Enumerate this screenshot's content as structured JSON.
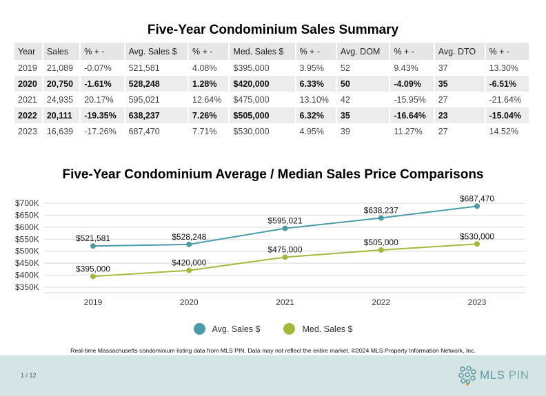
{
  "table": {
    "title": "Five-Year Condominium Sales Summary",
    "headers": [
      "Year",
      "Sales",
      "% + -",
      "Avg. Sales $",
      "% + -",
      "Med. Sales $",
      "% + -",
      "Avg. DOM",
      "% + -",
      "Avg. DTO",
      "% + -"
    ],
    "rows": [
      [
        "2019",
        "21,089",
        "-0.07%",
        "521,581",
        "4.08%",
        "$395,000",
        "3.95%",
        "52",
        "9.43%",
        "37",
        "13.30%"
      ],
      [
        "2020",
        "20,750",
        "-1.61%",
        "528,248",
        "1.28%",
        "$420,000",
        "6.33%",
        "50",
        "-4.09%",
        "35",
        "-6.51%"
      ],
      [
        "2021",
        "24,935",
        "20.17%",
        "595,021",
        "12.64%",
        "$475,000",
        "13.10%",
        "42",
        "-15.95%",
        "27",
        "-21.64%"
      ],
      [
        "2022",
        "20,111",
        "-19.35%",
        "638,237",
        "7.26%",
        "$505,000",
        "6.32%",
        "35",
        "-16.64%",
        "23",
        "-15.04%"
      ],
      [
        "2023",
        "16,639",
        "-17.26%",
        "687,470",
        "7.71%",
        "$530,000",
        "4.95%",
        "39",
        "11.27%",
        "27",
        "14.52%"
      ]
    ]
  },
  "chart_data": {
    "type": "line",
    "title": "Five-Year Condominium Average / Median Sales Price Comparisons",
    "x": [
      "2019",
      "2020",
      "2021",
      "2022",
      "2023"
    ],
    "ylim": [
      350000,
      700000
    ],
    "yticks": [
      {
        "value": 700000,
        "label": "$700K"
      },
      {
        "value": 650000,
        "label": "$650K"
      },
      {
        "value": 600000,
        "label": "$600K"
      },
      {
        "value": 550000,
        "label": "$550K"
      },
      {
        "value": 500000,
        "label": "$500K"
      },
      {
        "value": 450000,
        "label": "$450K"
      },
      {
        "value": 400000,
        "label": "$400K"
      },
      {
        "value": 350000,
        "label": "$350K"
      }
    ],
    "grid": true,
    "legend": "bottom",
    "series": [
      {
        "name": "Avg. Sales $",
        "color": "#4a9da8",
        "values": [
          521581,
          528248,
          595021,
          638237,
          687470
        ],
        "labels": [
          "$521,581",
          "$528,248",
          "$595,021",
          "$638,237",
          "$687,470"
        ]
      },
      {
        "name": "Med. Sales $",
        "color": "#a6b83c",
        "values": [
          395000,
          420000,
          475000,
          505000,
          530000
        ],
        "labels": [
          "$395,000",
          "$420,000",
          "$475,000",
          "$505,000",
          "$530,000"
        ]
      }
    ]
  },
  "footnote": "Real-time Massachusetts condominium listing data from MLS PIN. Data may not reflect the entire market. ©2024 MLS Property Information Network, Inc.",
  "footer": {
    "page": "1 / 12",
    "logo_text_a": "MLS",
    "logo_text_b": "PIN",
    "logo_icon": "mls-pin-logo-icon"
  }
}
